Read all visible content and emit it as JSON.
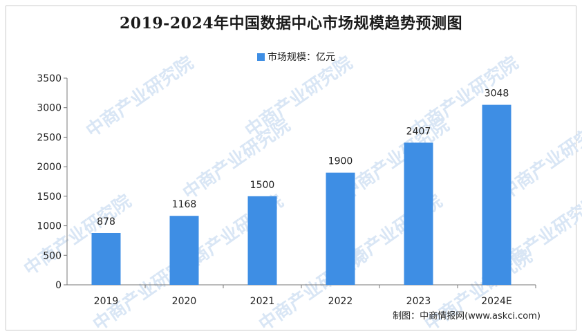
{
  "watermark": "中商产业研究院",
  "source": "制图：中商情报网(www.askci.com)",
  "colors": {
    "bar": "#3e8ee4",
    "axis": "#777777",
    "text": "#222222"
  },
  "chart_data": {
    "type": "bar",
    "title": "2019-2024年中国数据中心市场规模趋势预测图",
    "legend": "市场规模：亿元",
    "legend_position": "top",
    "categories": [
      "2019",
      "2020",
      "2021",
      "2022",
      "2023",
      "2024E"
    ],
    "series": [
      {
        "name": "市场规模：亿元",
        "values": [
          878,
          1168,
          1500,
          1900,
          2407,
          3048
        ]
      }
    ],
    "ylim": [
      0,
      3500
    ],
    "yticks": [
      0,
      500,
      1000,
      1500,
      2000,
      2500,
      3000,
      3500
    ],
    "grid": false
  }
}
